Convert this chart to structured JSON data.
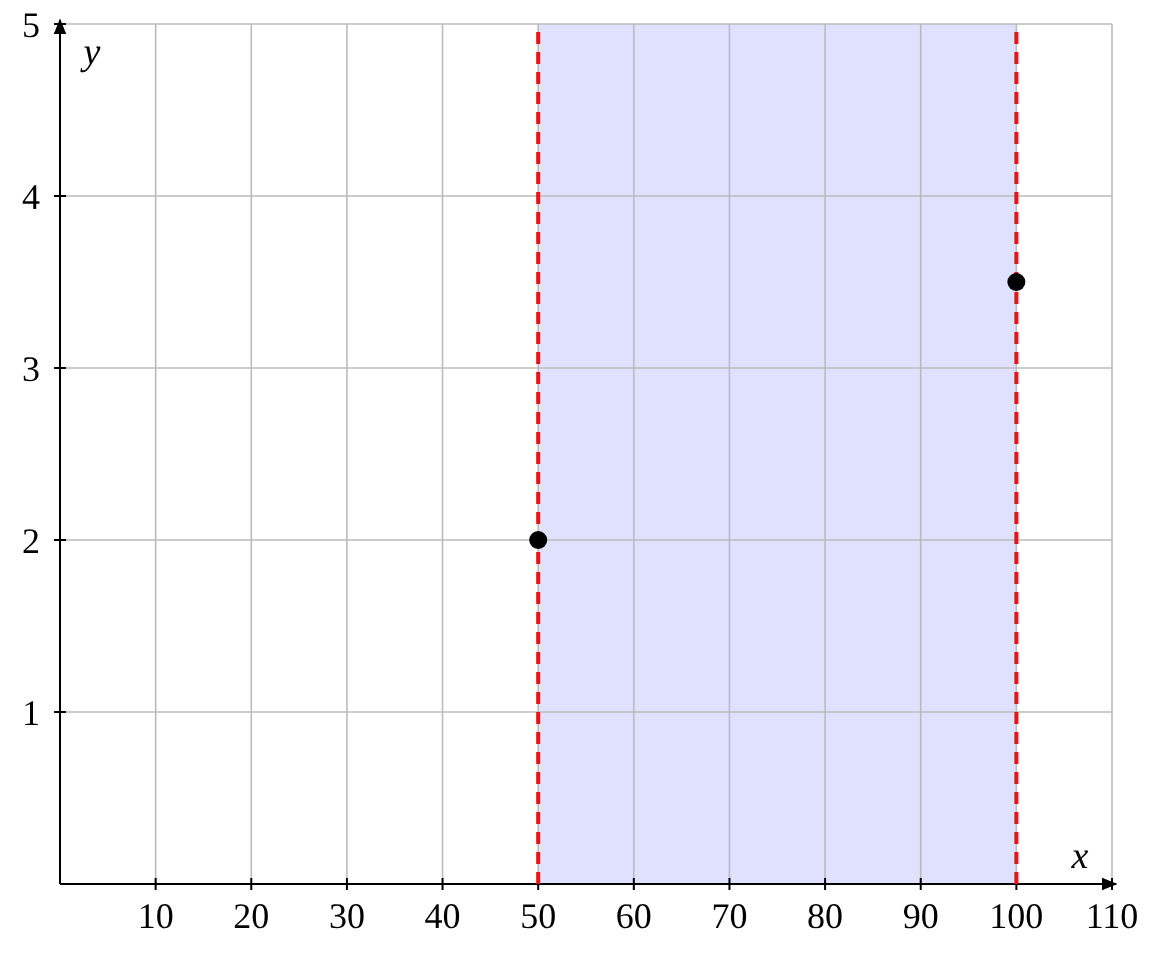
{
  "chart_data": {
    "type": "scatter",
    "xlabel": "x",
    "ylabel": "y",
    "x": [
      50,
      100
    ],
    "series": [
      {
        "color": "#000000",
        "values": [
          2,
          3.5
        ]
      }
    ],
    "xlim": [
      0,
      110
    ],
    "ylim": [
      0,
      5
    ],
    "xticks": [
      10,
      20,
      30,
      40,
      50,
      60,
      70,
      80,
      90,
      100,
      110
    ],
    "yticks": [
      1,
      2,
      3,
      4,
      5
    ],
    "grid": true,
    "marker": "circle",
    "bands": [
      {
        "axis": "x",
        "from": 50,
        "to": 100,
        "color": "#e0e0ff"
      }
    ]
  }
}
